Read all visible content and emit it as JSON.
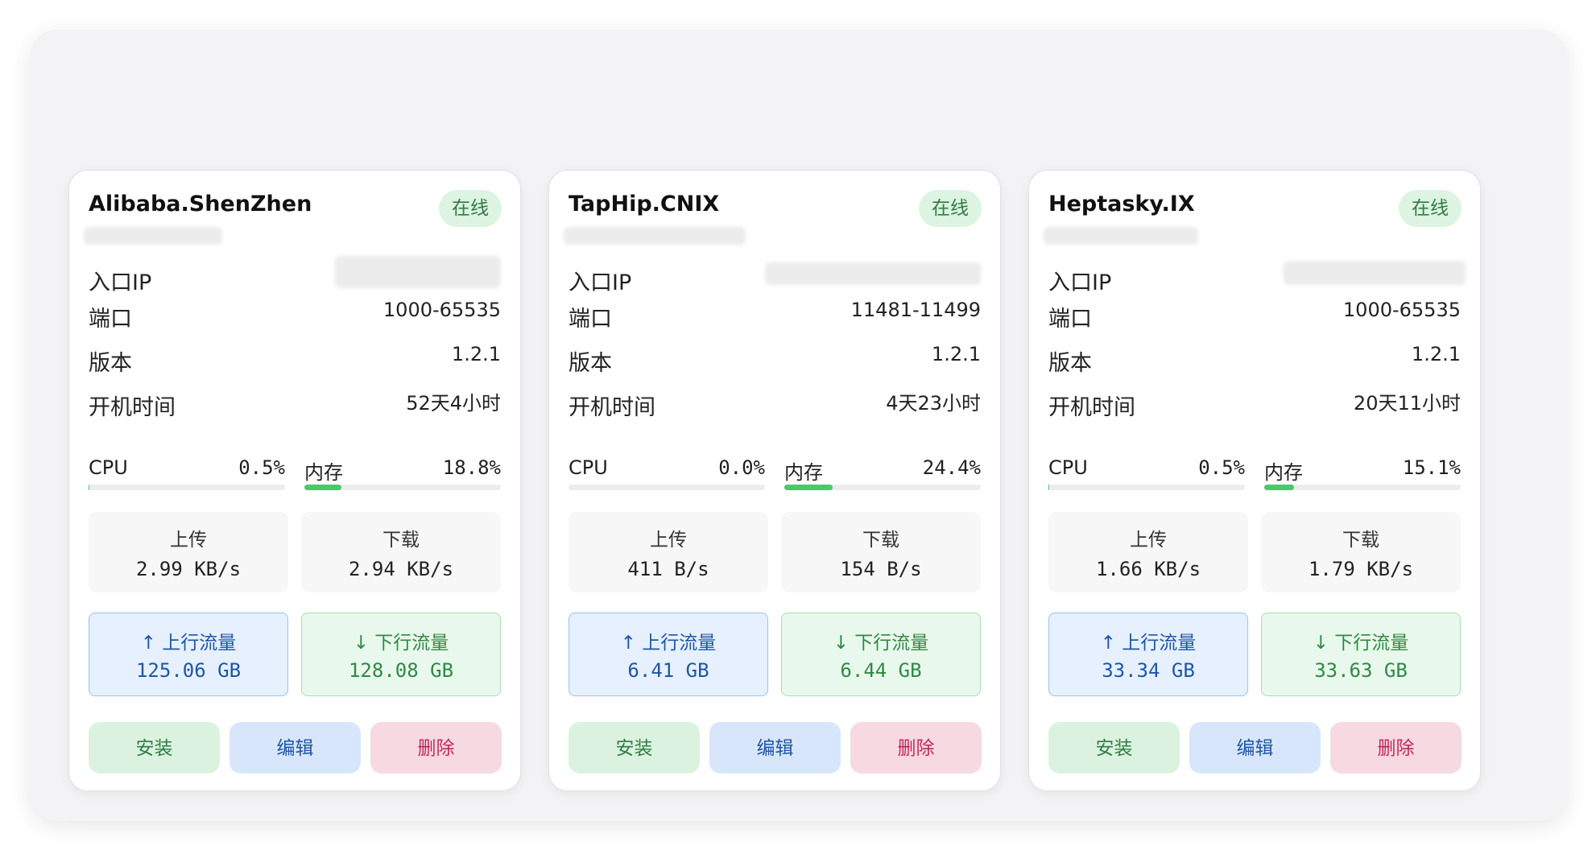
{
  "labels": {
    "entry_ip": "入口IP",
    "port": "端口",
    "version": "版本",
    "uptime": "开机时间",
    "cpu": "CPU",
    "memory": "内存",
    "upload": "上传",
    "download": "下载",
    "up_traffic": "↑ 上行流量",
    "down_traffic": "↓ 下行流量",
    "install": "安装",
    "edit": "编辑",
    "delete": "删除"
  },
  "colors": {
    "online_badge": "#dcf4e1",
    "up_accent": "#1f56a6",
    "down_accent": "#2e8a45",
    "delete_accent": "#c0275a",
    "meter_fill": "#4cc76a"
  },
  "nodes": [
    {
      "name": "Alibaba.ShenZhen",
      "status": "在线",
      "port": "1000-65535",
      "version": "1.2.1",
      "uptime": "52天4小时",
      "cpu": "0.5%",
      "cpu_fraction": 0.005,
      "memory": "18.8%",
      "memory_fraction": 0.188,
      "upload_speed": "2.99 KB/s",
      "download_speed": "2.94 KB/s",
      "up_traffic": "125.06 GB",
      "down_traffic": "128.08 GB"
    },
    {
      "name": "TapHip.CNIX",
      "status": "在线",
      "port": "11481-11499",
      "version": "1.2.1",
      "uptime": "4天23小时",
      "cpu": "0.0%",
      "cpu_fraction": 0.0,
      "memory": "24.4%",
      "memory_fraction": 0.244,
      "upload_speed": "411 B/s",
      "download_speed": "154 B/s",
      "up_traffic": "6.41 GB",
      "down_traffic": "6.44 GB"
    },
    {
      "name": "Heptasky.IX",
      "status": "在线",
      "port": "1000-65535",
      "version": "1.2.1",
      "uptime": "20天11小时",
      "cpu": "0.5%",
      "cpu_fraction": 0.005,
      "memory": "15.1%",
      "memory_fraction": 0.151,
      "upload_speed": "1.66 KB/s",
      "download_speed": "1.79 KB/s",
      "up_traffic": "33.34 GB",
      "down_traffic": "33.63 GB"
    }
  ]
}
